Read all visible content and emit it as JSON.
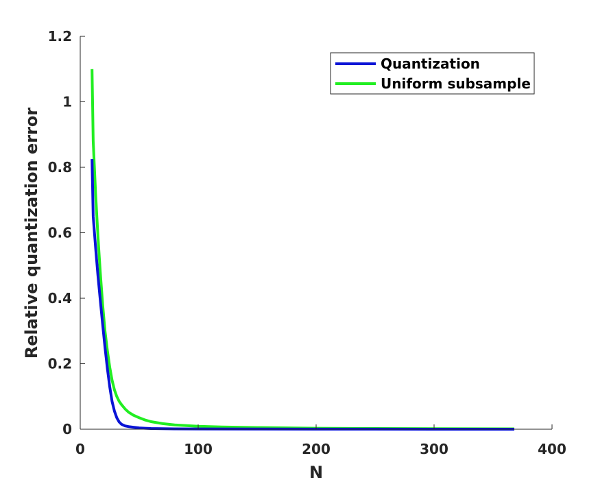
{
  "chart_data": {
    "type": "line",
    "xlabel": "N",
    "ylabel": "Relative quantization error",
    "xlim": [
      0,
      400
    ],
    "ylim": [
      0,
      1.2
    ],
    "xticks": [
      0,
      100,
      200,
      300,
      400
    ],
    "yticks": [
      0,
      0.2,
      0.4,
      0.6,
      0.8,
      1,
      1.2
    ],
    "xtick_labels": [
      "0",
      "100",
      "200",
      "300",
      "400"
    ],
    "ytick_labels": [
      "0",
      "0.2",
      "0.4",
      "0.6",
      "0.8",
      "1",
      "1.2"
    ],
    "grid": false,
    "legend_position": "top-right",
    "series": [
      {
        "name": "Quantization",
        "color": "#0a14d6",
        "x": [
          10,
          11,
          13,
          15,
          17,
          19,
          21,
          23,
          25,
          27,
          29,
          31,
          33,
          35,
          38,
          41,
          45,
          50,
          55,
          60,
          70,
          80,
          100,
          150,
          200,
          250,
          300,
          368
        ],
        "y": [
          0.825,
          0.65,
          0.555,
          0.47,
          0.395,
          0.32,
          0.25,
          0.185,
          0.13,
          0.085,
          0.055,
          0.035,
          0.022,
          0.015,
          0.01,
          0.008,
          0.006,
          0.004,
          0.003,
          0.002,
          0.0015,
          0.001,
          0.0008,
          0.0005,
          0.0003,
          0.0002,
          0.0001,
          0.0001
        ]
      },
      {
        "name": "Uniform subsample",
        "color": "#22ee22",
        "x": [
          10,
          11,
          13,
          15,
          17,
          19,
          21,
          23,
          25,
          27,
          29,
          31,
          33,
          35,
          38,
          41,
          45,
          50,
          55,
          60,
          70,
          80,
          100,
          120,
          150,
          200,
          250,
          300,
          368
        ],
        "y": [
          1.1,
          0.88,
          0.72,
          0.59,
          0.48,
          0.38,
          0.3,
          0.24,
          0.19,
          0.15,
          0.12,
          0.1,
          0.085,
          0.075,
          0.062,
          0.052,
          0.043,
          0.035,
          0.028,
          0.023,
          0.017,
          0.013,
          0.009,
          0.007,
          0.005,
          0.003,
          0.002,
          0.0015,
          0.001
        ]
      }
    ]
  }
}
